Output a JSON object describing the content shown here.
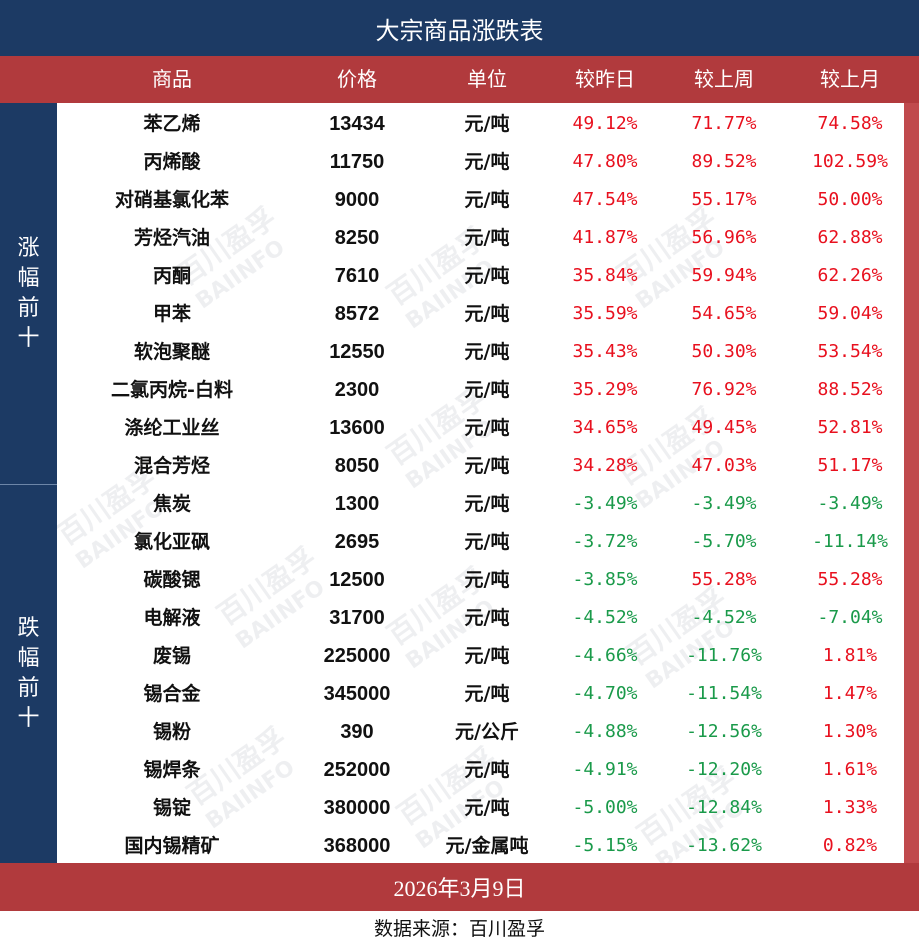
{
  "title": "大宗商品涨跌表",
  "headers": {
    "name": "商品",
    "price": "价格",
    "unit": "单位",
    "day": "较昨日",
    "week": "较上周",
    "month": "较上月"
  },
  "groups": {
    "up": [
      "涨",
      "幅",
      "前",
      "十"
    ],
    "down": [
      "跌",
      "幅",
      "前",
      "十"
    ]
  },
  "rows": [
    {
      "name": "苯乙烯",
      "price": "13434",
      "unit": "元/吨",
      "day": "49.12%",
      "week": "71.77%",
      "month": "74.58%"
    },
    {
      "name": "丙烯酸",
      "price": "11750",
      "unit": "元/吨",
      "day": "47.80%",
      "week": "89.52%",
      "month": "102.59%"
    },
    {
      "name": "对硝基氯化苯",
      "price": "9000",
      "unit": "元/吨",
      "day": "47.54%",
      "week": "55.17%",
      "month": "50.00%"
    },
    {
      "name": "芳烃汽油",
      "price": "8250",
      "unit": "元/吨",
      "day": "41.87%",
      "week": "56.96%",
      "month": "62.88%"
    },
    {
      "name": "丙酮",
      "price": "7610",
      "unit": "元/吨",
      "day": "35.84%",
      "week": "59.94%",
      "month": "62.26%"
    },
    {
      "name": "甲苯",
      "price": "8572",
      "unit": "元/吨",
      "day": "35.59%",
      "week": "54.65%",
      "month": "59.04%"
    },
    {
      "name": "软泡聚醚",
      "price": "12550",
      "unit": "元/吨",
      "day": "35.43%",
      "week": "50.30%",
      "month": "53.54%"
    },
    {
      "name": "二氯丙烷-白料",
      "price": "2300",
      "unit": "元/吨",
      "day": "35.29%",
      "week": "76.92%",
      "month": "88.52%"
    },
    {
      "name": "涤纶工业丝",
      "price": "13600",
      "unit": "元/吨",
      "day": "34.65%",
      "week": "49.45%",
      "month": "52.81%"
    },
    {
      "name": "混合芳烃",
      "price": "8050",
      "unit": "元/吨",
      "day": "34.28%",
      "week": "47.03%",
      "month": "51.17%"
    },
    {
      "name": "焦炭",
      "price": "1300",
      "unit": "元/吨",
      "day": "-3.49%",
      "week": "-3.49%",
      "month": "-3.49%"
    },
    {
      "name": "氯化亚砜",
      "price": "2695",
      "unit": "元/吨",
      "day": "-3.72%",
      "week": "-5.70%",
      "month": "-11.14%"
    },
    {
      "name": "碳酸锶",
      "price": "12500",
      "unit": "元/吨",
      "day": "-3.85%",
      "week": "55.28%",
      "month": "55.28%"
    },
    {
      "name": "电解液",
      "price": "31700",
      "unit": "元/吨",
      "day": "-4.52%",
      "week": "-4.52%",
      "month": "-7.04%"
    },
    {
      "name": "废锡",
      "price": "225000",
      "unit": "元/吨",
      "day": "-4.66%",
      "week": "-11.76%",
      "month": "1.81%"
    },
    {
      "name": "锡合金",
      "price": "345000",
      "unit": "元/吨",
      "day": "-4.70%",
      "week": "-11.54%",
      "month": "1.47%"
    },
    {
      "name": "锡粉",
      "price": "390",
      "unit": "元/公斤",
      "day": "-4.88%",
      "week": "-12.56%",
      "month": "1.30%"
    },
    {
      "name": "锡焊条",
      "price": "252000",
      "unit": "元/吨",
      "day": "-4.91%",
      "week": "-12.20%",
      "month": "1.61%"
    },
    {
      "name": "锡锭",
      "price": "380000",
      "unit": "元/吨",
      "day": "-5.00%",
      "week": "-12.84%",
      "month": "1.33%"
    },
    {
      "name": "国内锡精矿",
      "price": "368000",
      "unit": "元/金属吨",
      "day": "-5.15%",
      "week": "-13.62%",
      "month": "0.82%"
    }
  ],
  "footer": {
    "date": "2026年3月9日",
    "source": "数据来源：百川盈孚"
  },
  "watermark": {
    "cn": "百川盈孚",
    "en": "BAIINFO"
  },
  "colors": {
    "navy": "#1c3a64",
    "red_band": "#b13a3d",
    "positive": "#e8101e",
    "negative": "#1a9a4a"
  }
}
